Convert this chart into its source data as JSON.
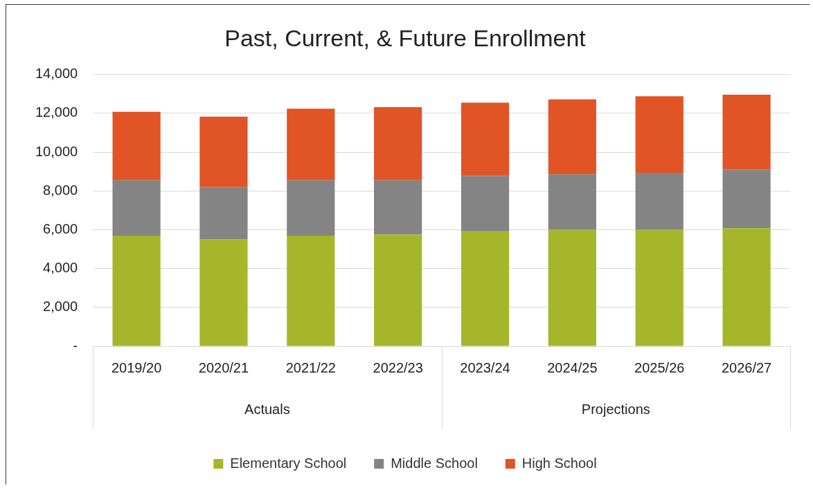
{
  "chart_data": {
    "type": "bar",
    "stacked": true,
    "title": "Past, Current, & Future Enrollment",
    "categories": [
      "2019/20",
      "2020/21",
      "2021/22",
      "2022/23",
      "2023/24",
      "2024/25",
      "2025/26",
      "2026/27"
    ],
    "series": [
      {
        "name": "Elementary School",
        "color": "#a5b62a",
        "values": [
          5700,
          5500,
          5700,
          5760,
          5920,
          6000,
          6000,
          6080
        ]
      },
      {
        "name": "Middle School",
        "color": "#848484",
        "values": [
          2850,
          2700,
          2850,
          2790,
          2860,
          2860,
          2940,
          3020
        ]
      },
      {
        "name": "High School",
        "color": "#e05426",
        "values": [
          3530,
          3630,
          3690,
          3770,
          3770,
          3860,
          3940,
          3860
        ]
      }
    ],
    "ylim": [
      0,
      14000
    ],
    "yticks": [
      {
        "value": 0,
        "label": "-"
      },
      {
        "value": 2000,
        "label": "2,000"
      },
      {
        "value": 4000,
        "label": "4,000"
      },
      {
        "value": 6000,
        "label": "6,000"
      },
      {
        "value": 8000,
        "label": "8,000"
      },
      {
        "value": 10000,
        "label": "10,000"
      },
      {
        "value": 12000,
        "label": "12,000"
      },
      {
        "value": 14000,
        "label": "14,000"
      }
    ],
    "grid": "y",
    "legend": "bottom",
    "annotations": [
      "Actuals",
      "Projections"
    ]
  }
}
